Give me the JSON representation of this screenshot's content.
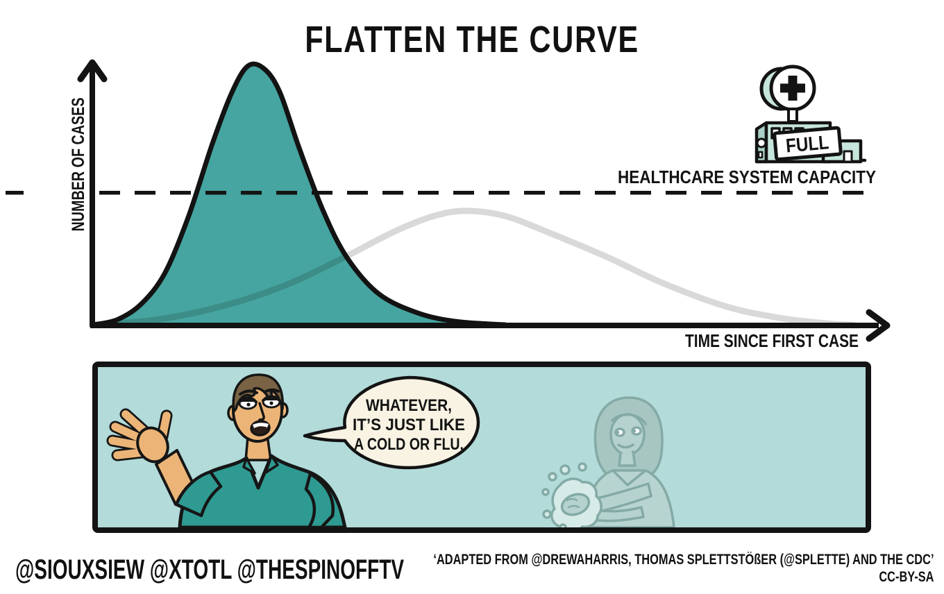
{
  "title": "FLATTEN THE CURVE",
  "chart_data": {
    "type": "area",
    "title": "FLATTEN THE CURVE",
    "xlabel": "TIME SINCE FIRST CASE",
    "ylabel": "NUMBER OF CASES",
    "axes_numeric_labels": false,
    "grid": false,
    "capacity_label": "HEALTHCARE SYSTEM CAPACITY",
    "capacity_level_frac": 0.51,
    "series": [
      {
        "name": "cases without protective measures (steep curve)",
        "style": "filled-area",
        "color": "#46a5a0",
        "x_frac": [
          0,
          0.03,
          0.06,
          0.09,
          0.12,
          0.15,
          0.175,
          0.195,
          0.215,
          0.235,
          0.26,
          0.29,
          0.32,
          0.36,
          0.41,
          0.46,
          0.52
        ],
        "y_frac": [
          0,
          0.02,
          0.08,
          0.2,
          0.42,
          0.7,
          0.9,
          1.0,
          0.99,
          0.9,
          0.68,
          0.44,
          0.26,
          0.12,
          0.045,
          0.012,
          0
        ]
      },
      {
        "name": "cases with protective measures (flattened curve)",
        "style": "line",
        "color": "#d9d9d9",
        "x_frac": [
          0,
          0.08,
          0.16,
          0.24,
          0.31,
          0.38,
          0.43,
          0.47,
          0.52,
          0.58,
          0.65,
          0.72,
          0.8,
          0.87,
          0.93,
          0.96
        ],
        "y_frac": [
          0,
          0.02,
          0.07,
          0.15,
          0.25,
          0.36,
          0.42,
          0.44,
          0.42,
          0.35,
          0.26,
          0.16,
          0.07,
          0.025,
          0.004,
          0
        ]
      }
    ]
  },
  "hospital": {
    "sign": "FULL"
  },
  "comic": {
    "speech_bubble": {
      "line1": "WHATEVER,",
      "line2": "IT’S JUST LIKE",
      "line3": "A COLD OR FLU."
    }
  },
  "credits": {
    "handles": "@SIOUXSIEW @XTOTL @THESPINOFFTV",
    "attribution": "‘ADAPTED FROM @DREWAHARRIS, THOMAS SPLETTSTÖßER (@SPLETTE) AND THE CDC’",
    "license": "CC-BY-SA"
  },
  "colors": {
    "curve_fill": "#46a5a0",
    "flattened_curve": "#d9d9d9",
    "panel_bg": "#b2dbd9",
    "bubble_bg": "#f8f3e3",
    "hospital_mint": "#c6e5dc",
    "hospital_mint_dark": "#a9d0c6",
    "ink": "#131313"
  }
}
